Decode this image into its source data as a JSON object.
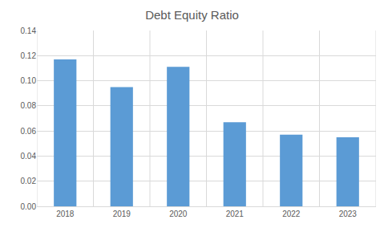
{
  "chart_data": {
    "type": "bar",
    "title": "Debt Equity Ratio",
    "categories": [
      "2018",
      "2019",
      "2020",
      "2021",
      "2022",
      "2023"
    ],
    "values": [
      0.117,
      0.095,
      0.111,
      0.067,
      0.057,
      0.055
    ],
    "color": "#5b9bd5",
    "ylim": [
      0,
      0.14
    ],
    "yticks": [
      {
        "value": 0,
        "label": "0.00"
      },
      {
        "value": 0.02,
        "label": "0.02"
      },
      {
        "value": 0.04,
        "label": "0.04"
      },
      {
        "value": 0.06,
        "label": "0.06"
      },
      {
        "value": 0.08,
        "label": "0.08"
      },
      {
        "value": 0.1,
        "label": "0.10"
      },
      {
        "value": 0.12,
        "label": "0.12"
      },
      {
        "value": 0.14,
        "label": "0.14"
      }
    ],
    "grid": true
  }
}
